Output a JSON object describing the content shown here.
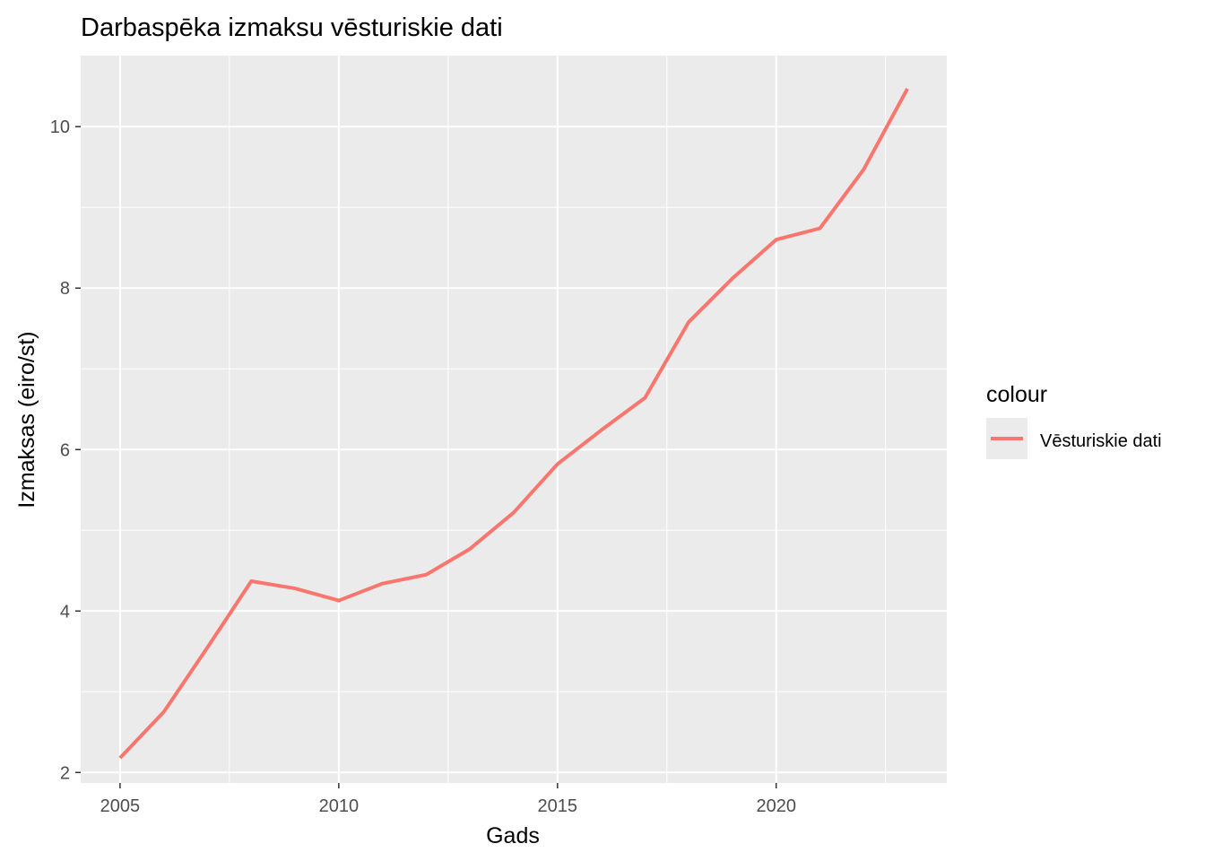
{
  "chart_data": {
    "type": "line",
    "title": "Darbaspēka izmaksu vēsturiskie dati",
    "xlabel": "Gads",
    "ylabel": "Izmaksas (eiro/st)",
    "x": [
      2005,
      2006,
      2007,
      2008,
      2009,
      2010,
      2011,
      2012,
      2013,
      2014,
      2015,
      2016,
      2017,
      2018,
      2019,
      2020,
      2021,
      2022,
      2023
    ],
    "series": [
      {
        "name": "Vēsturiskie dati",
        "color": "#F8766D",
        "values": [
          2.18,
          2.75,
          3.55,
          4.37,
          4.28,
          4.13,
          4.34,
          4.45,
          4.77,
          5.22,
          5.82,
          6.24,
          6.64,
          7.58,
          8.12,
          8.6,
          8.74,
          9.47,
          10.47
        ]
      }
    ],
    "xlim": [
      2004.1,
      2023.9
    ],
    "ylim": [
      1.87,
      10.88
    ],
    "x_ticks": [
      2005,
      2010,
      2015,
      2020
    ],
    "y_ticks": [
      2,
      4,
      6,
      8,
      10
    ],
    "grid": true,
    "legend": {
      "title": "colour",
      "position": "right",
      "entries": [
        "Vēsturiskie dati"
      ]
    }
  }
}
